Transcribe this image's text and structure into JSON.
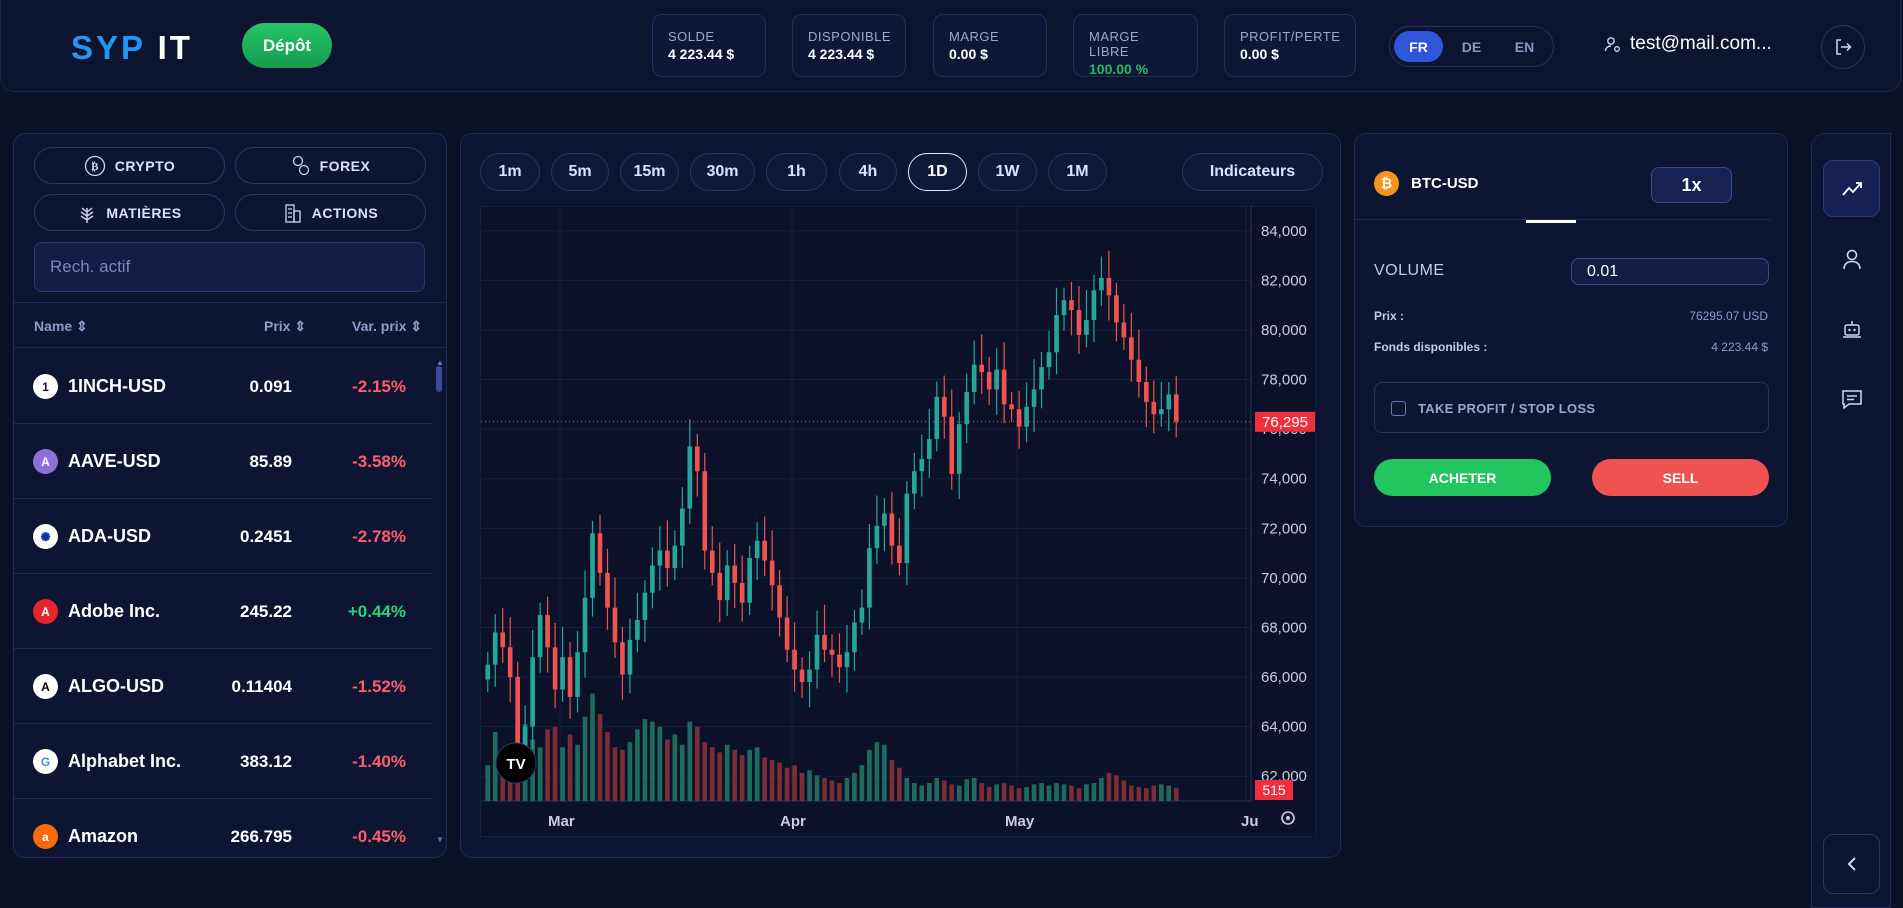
{
  "header": {
    "logo_a": "SYP",
    "logo_b": "IT",
    "deposit_label": "Dépôt",
    "stats": [
      {
        "label": "SOLDE",
        "value": "4 223.44 $",
        "color": "#ffffff"
      },
      {
        "label": "DISPONIBLE",
        "value": "4 223.44 $",
        "color": "#ffffff"
      },
      {
        "label": "MARGE",
        "value": "0.00 $",
        "color": "#ffffff"
      },
      {
        "label": "MARGE LIBRE",
        "value": "100.00 %",
        "color": "#27b85f"
      },
      {
        "label": "PROFIT/PERTE",
        "value": "0.00 $",
        "color": "#ffffff"
      }
    ],
    "languages": [
      "FR",
      "DE",
      "EN"
    ],
    "active_language": "FR",
    "user_email": "test@mail.com..."
  },
  "assets": {
    "categories": [
      "CRYPTO",
      "FOREX",
      "MATIÈRES",
      "ACTIONS"
    ],
    "search_placeholder": "Rech. actif",
    "columns": {
      "name": "Name",
      "price": "Prix",
      "change": "Var. prix"
    },
    "rows": [
      {
        "name": "1INCH-USD",
        "price": "0.091",
        "change": "-2.15%",
        "icon": "1inch-icon",
        "icon_bg": "#ffffff",
        "icon_fg": "#1b1b1b",
        "glyph": "1"
      },
      {
        "name": "AAVE-USD",
        "price": "85.89",
        "change": "-3.58%",
        "icon": "aave-icon",
        "icon_bg": "#8e6fd8",
        "icon_fg": "#ffffff",
        "glyph": "A"
      },
      {
        "name": "ADA-USD",
        "price": "0.2451",
        "change": "-2.78%",
        "icon": "cardano-icon",
        "icon_bg": "#ffffff",
        "icon_fg": "#0033ad",
        "glyph": "✺"
      },
      {
        "name": "Adobe Inc.",
        "price": "245.22",
        "change": "+0.44%",
        "icon": "adobe-icon",
        "icon_bg": "#e8252a",
        "icon_fg": "#ffffff",
        "glyph": "A"
      },
      {
        "name": "ALGO-USD",
        "price": "0.11404",
        "change": "-1.52%",
        "icon": "algorand-icon",
        "icon_bg": "#ffffff",
        "icon_fg": "#000000",
        "glyph": "A"
      },
      {
        "name": "Alphabet Inc.",
        "price": "383.12",
        "change": "-1.40%",
        "icon": "google-icon",
        "icon_bg": "#ffffff",
        "icon_fg": "#4285f4",
        "glyph": "G"
      },
      {
        "name": "Amazon",
        "price": "266.795",
        "change": "-0.45%",
        "icon": "amazon-icon",
        "icon_bg": "#f46a0c",
        "icon_fg": "#ffffff",
        "glyph": "a"
      }
    ],
    "negative_color": "#ff5c6c",
    "positive_color": "#2fd17a"
  },
  "chart_panel": {
    "timeframes": [
      "1m",
      "5m",
      "15m",
      "30m",
      "1h",
      "4h",
      "1D",
      "1W",
      "1M"
    ],
    "active_timeframe": "1D",
    "indicators_label": "Indicateurs",
    "price_badge": "76,295",
    "volume_badge": "515",
    "watermark": "TV",
    "chart_data": {
      "type": "candlestick",
      "y_ticks": [
        "84,000",
        "82,000",
        "80,000",
        "78,000",
        "76,000",
        "74,000",
        "72,000",
        "70,000",
        "68,000",
        "66,000",
        "64,000",
        "62,000"
      ],
      "x_ticks": [
        "Mar",
        "Apr",
        "May",
        "Ju"
      ],
      "ylim": [
        61000,
        85000
      ],
      "last_price": 76295,
      "up_color": "#26a69a",
      "down_color": "#ef5350",
      "closes": [
        66500,
        67800,
        67200,
        66000,
        62500,
        64000,
        66800,
        68500,
        67200,
        65500,
        66800,
        65200,
        67000,
        69200,
        71800,
        70200,
        68800,
        67400,
        66100,
        67500,
        68300,
        69400,
        70500,
        71100,
        70400,
        71300,
        72800,
        75300,
        74300,
        71100,
        70200,
        69100,
        70500,
        69800,
        69000,
        70800,
        71500,
        70700,
        69700,
        68400,
        67100,
        66300,
        65800,
        66300,
        67700,
        67100,
        66900,
        66400,
        67000,
        68200,
        68800,
        71200,
        72100,
        72600,
        71300,
        70600,
        73400,
        74300,
        74800,
        75600,
        77300,
        76500,
        74200,
        76200,
        77500,
        78600,
        78300,
        77600,
        78400,
        77000,
        76800,
        76100,
        76900,
        77600,
        78500,
        79100,
        80600,
        81200,
        80800,
        79800,
        80400,
        81600,
        82100,
        81400,
        80300,
        79700,
        78800,
        77900,
        77100,
        76600,
        76800,
        77400,
        76300
      ],
      "volumes": [
        1400,
        2700,
        2000,
        2100,
        2600,
        3000,
        2400,
        2100,
        2800,
        2900,
        2100,
        2600,
        2200,
        3300,
        4200,
        3400,
        2700,
        2100,
        2000,
        2300,
        2800,
        3200,
        3100,
        2900,
        2400,
        2600,
        2200,
        3100,
        2900,
        2300,
        2100,
        1900,
        2200,
        2000,
        1800,
        2000,
        2100,
        1700,
        1600,
        1500,
        1300,
        1400,
        1100,
        1200,
        1000,
        900,
        800,
        700,
        900,
        1100,
        1400,
        2000,
        2300,
        2200,
        1600,
        1300,
        900,
        700,
        600,
        700,
        900,
        800,
        650,
        600,
        850,
        900,
        700,
        550,
        650,
        700,
        600,
        500,
        550,
        650,
        700,
        600,
        700,
        650,
        600,
        500,
        650,
        700,
        900,
        1100,
        1000,
        800,
        600,
        550,
        500,
        600,
        650,
        600,
        515
      ]
    }
  },
  "trade": {
    "symbol": "BTC-USD",
    "leverage": "1x",
    "volume_label": "VOLUME",
    "volume_value": "0.01",
    "price_label": "Prix :",
    "price_value": "76295.07 USD",
    "funds_label": "Fonds disponibles :",
    "funds_value": "4 223.44 $",
    "tpsl_label": "TAKE PROFIT / STOP LOSS",
    "buy_label": "ACHETER",
    "sell_label": "SELL"
  },
  "sidebar": {
    "items": [
      "chart-icon",
      "user-icon",
      "robot-icon",
      "chat-icon"
    ],
    "collapse_icon": "chevron-left-icon"
  }
}
